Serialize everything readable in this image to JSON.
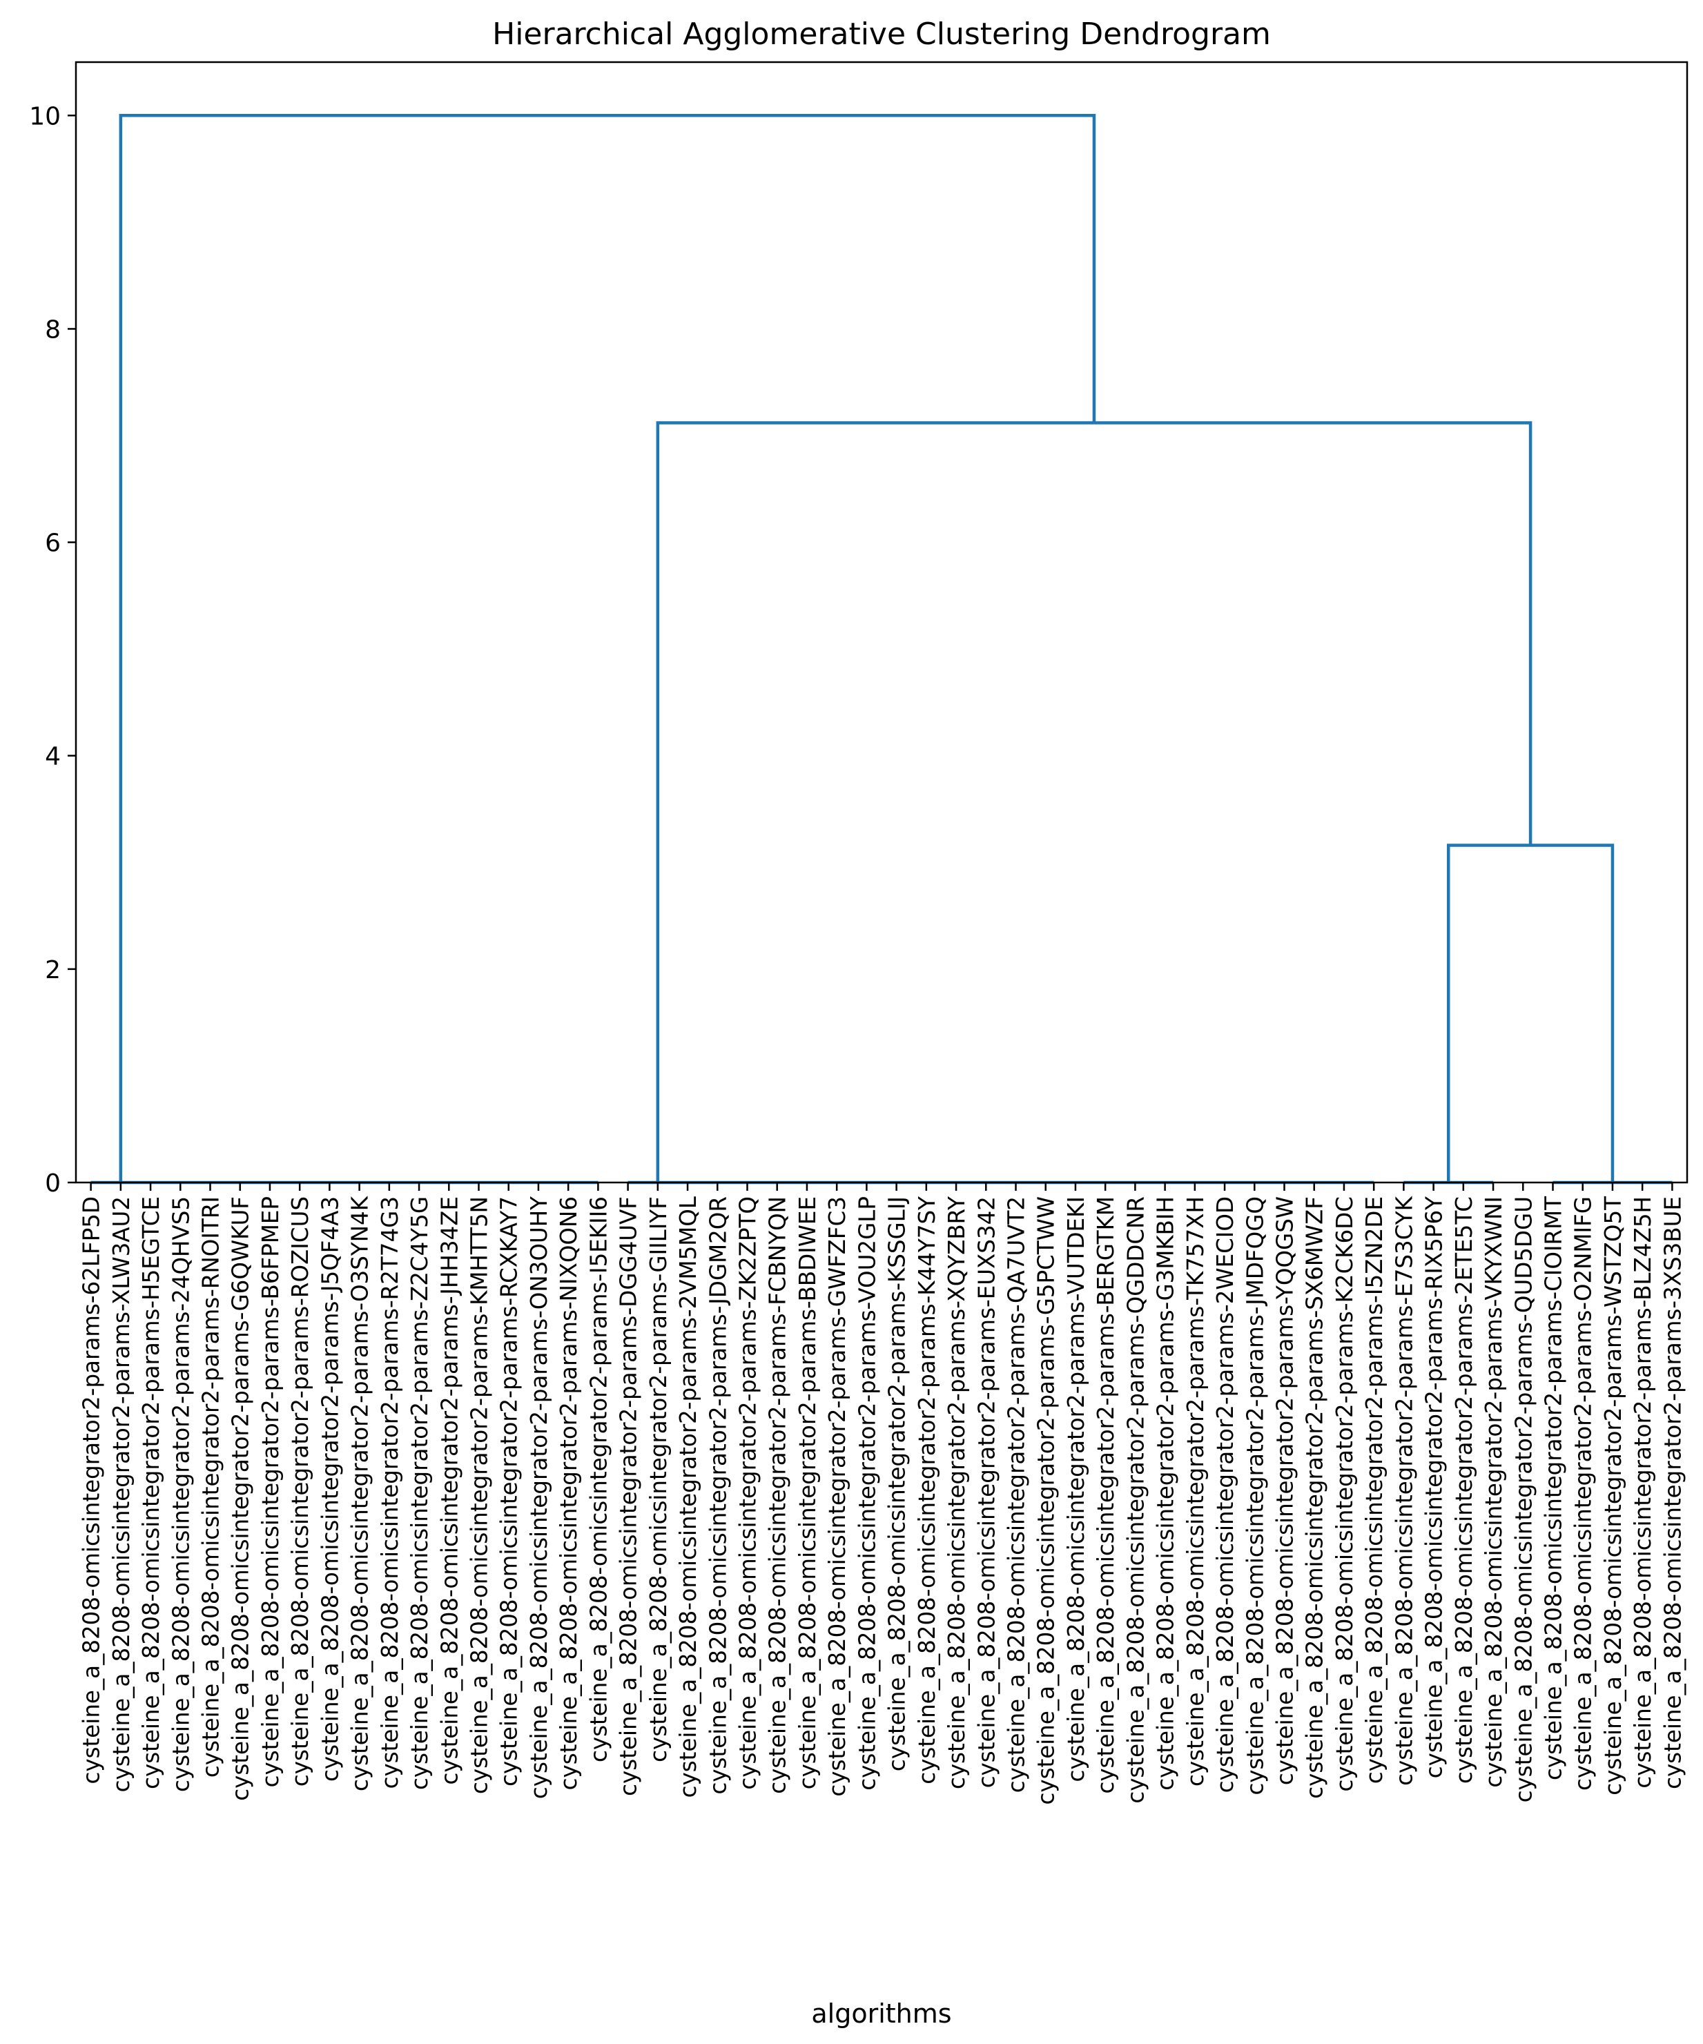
{
  "chart_data": {
    "type": "dendrogram",
    "title": "Hierarchical Agglomerative Clustering Dendrogram",
    "xlabel": "algorithms",
    "ylabel": "",
    "ylim": [
      0,
      10.5
    ],
    "yticks": [
      0,
      2,
      4,
      6,
      8,
      10
    ],
    "grid": false,
    "line_color": "#1f77b4",
    "leaves": [
      "cysteine_a_8208-omicsintegrator2-params-62LFP5D",
      "cysteine_a_8208-omicsintegrator2-params-XLW3AU2",
      "cysteine_a_8208-omicsintegrator2-params-H5EGTCE",
      "cysteine_a_8208-omicsintegrator2-params-24QHVS5",
      "cysteine_a_8208-omicsintegrator2-params-RNOITRI",
      "cysteine_a_8208-omicsintegrator2-params-G6QWKUF",
      "cysteine_a_8208-omicsintegrator2-params-B6FPMEP",
      "cysteine_a_8208-omicsintegrator2-params-ROZICUS",
      "cysteine_a_8208-omicsintegrator2-params-J5QF4A3",
      "cysteine_a_8208-omicsintegrator2-params-O3SYN4K",
      "cysteine_a_8208-omicsintegrator2-params-R2T74G3",
      "cysteine_a_8208-omicsintegrator2-params-Z2C4Y5G",
      "cysteine_a_8208-omicsintegrator2-params-JHH34ZE",
      "cysteine_a_8208-omicsintegrator2-params-KMHTT5N",
      "cysteine_a_8208-omicsintegrator2-params-RCXKAY7",
      "cysteine_a_8208-omicsintegrator2-params-ON3OUHY",
      "cysteine_a_8208-omicsintegrator2-params-NIXQON6",
      "cysteine_a_8208-omicsintegrator2-params-I5EKII6",
      "cysteine_a_8208-omicsintegrator2-params-DGG4UVF",
      "cysteine_a_8208-omicsintegrator2-params-GIILIYF",
      "cysteine_a_8208-omicsintegrator2-params-2VM5MQL",
      "cysteine_a_8208-omicsintegrator2-params-JDGM2QR",
      "cysteine_a_8208-omicsintegrator2-params-ZK2ZPTQ",
      "cysteine_a_8208-omicsintegrator2-params-FCBNYQN",
      "cysteine_a_8208-omicsintegrator2-params-BBDIWEE",
      "cysteine_a_8208-omicsintegrator2-params-GWFZFC3",
      "cysteine_a_8208-omicsintegrator2-params-VOU2GLP",
      "cysteine_a_8208-omicsintegrator2-params-KSSGLIJ",
      "cysteine_a_8208-omicsintegrator2-params-K44Y7SY",
      "cysteine_a_8208-omicsintegrator2-params-XQYZBRY",
      "cysteine_a_8208-omicsintegrator2-params-EUXS342",
      "cysteine_a_8208-omicsintegrator2-params-QA7UVT2",
      "cysteine_a_8208-omicsintegrator2-params-G5PCTWW",
      "cysteine_a_8208-omicsintegrator2-params-VUTDEKI",
      "cysteine_a_8208-omicsintegrator2-params-BERGTKM",
      "cysteine_a_8208-omicsintegrator2-params-QGDDCNR",
      "cysteine_a_8208-omicsintegrator2-params-G3MKBIH",
      "cysteine_a_8208-omicsintegrator2-params-TK757XH",
      "cysteine_a_8208-omicsintegrator2-params-2WECIOD",
      "cysteine_a_8208-omicsintegrator2-params-JMDFQGQ",
      "cysteine_a_8208-omicsintegrator2-params-YQQGSW",
      "cysteine_a_8208-omicsintegrator2-params-SX6MWZF",
      "cysteine_a_8208-omicsintegrator2-params-K2CK6DC",
      "cysteine_a_8208-omicsintegrator2-params-I5ZN2DE",
      "cysteine_a_8208-omicsintegrator2-params-E7S3CYK",
      "cysteine_a_8208-omicsintegrator2-params-RIX5P6Y",
      "cysteine_a_8208-omicsintegrator2-params-2ETE5TC",
      "cysteine_a_8208-omicsintegrator2-params-VKYXWNI",
      "cysteine_a_8208-omicsintegrator2-params-QUD5DGU",
      "cysteine_a_8208-omicsintegrator2-params-CIOIRMT",
      "cysteine_a_8208-omicsintegrator2-params-O2NMIFG",
      "cysteine_a_8208-omicsintegrator2-params-WSTZQ5T",
      "cysteine_a_8208-omicsintegrator2-params-BLZ4Z5H",
      "cysteine_a_8208-omicsintegrator2-params-3XS3BUE"
    ],
    "merges": [
      {
        "left": 0.0,
        "right": 17.0,
        "height": 0
      },
      {
        "left": 18.0,
        "right": 43.0,
        "height": 0
      },
      {
        "left": 44.0,
        "right": 47.0,
        "height": 0
      },
      {
        "left": 49.0,
        "right": 53.0,
        "height": 0
      },
      {
        "left": 45.5,
        "right": 51.0,
        "height": 3.16
      },
      {
        "left": 19.0,
        "right": 48.25,
        "height": 7.12
      },
      {
        "left": 1.0,
        "right": 33.625,
        "height": 10.0
      }
    ]
  }
}
